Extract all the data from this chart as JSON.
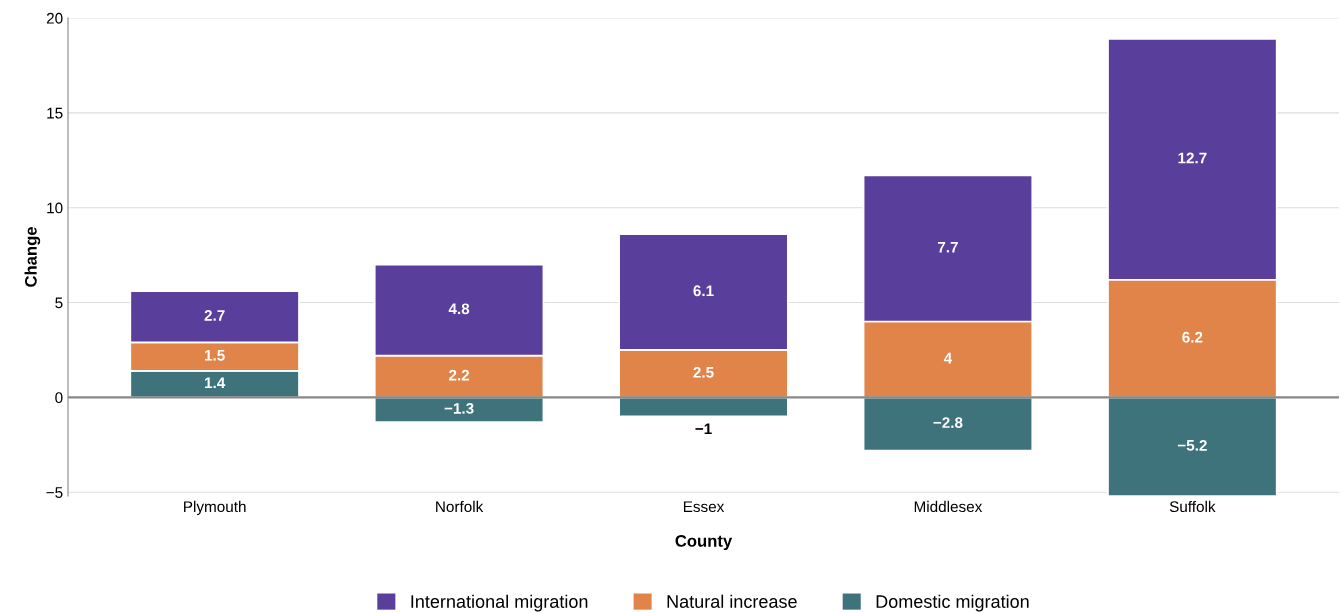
{
  "chart_data": {
    "type": "bar",
    "stacked": true,
    "xlabel": "County",
    "ylabel": "Change",
    "categories": [
      "Plymouth",
      "Norfolk",
      "Essex",
      "Middlesex",
      "Suffolk"
    ],
    "series": [
      {
        "name": "Domestic migration",
        "color": "#3f737c",
        "values": [
          1.4,
          -1.3,
          -1,
          -2.8,
          -5.2
        ]
      },
      {
        "name": "Natural increase",
        "color": "#e0844a",
        "values": [
          1.5,
          2.2,
          2.5,
          4,
          6.2
        ]
      },
      {
        "name": "International migration",
        "color": "#5a3e9b",
        "values": [
          2.7,
          4.8,
          6.1,
          7.7,
          12.7
        ]
      }
    ],
    "ylim": [
      -5.2,
      20
    ],
    "yticks": [
      {
        "value": -5,
        "label": "−5"
      },
      0,
      5,
      10,
      15,
      20
    ],
    "grid": "y",
    "legend": "bottom",
    "data_labels": true
  }
}
